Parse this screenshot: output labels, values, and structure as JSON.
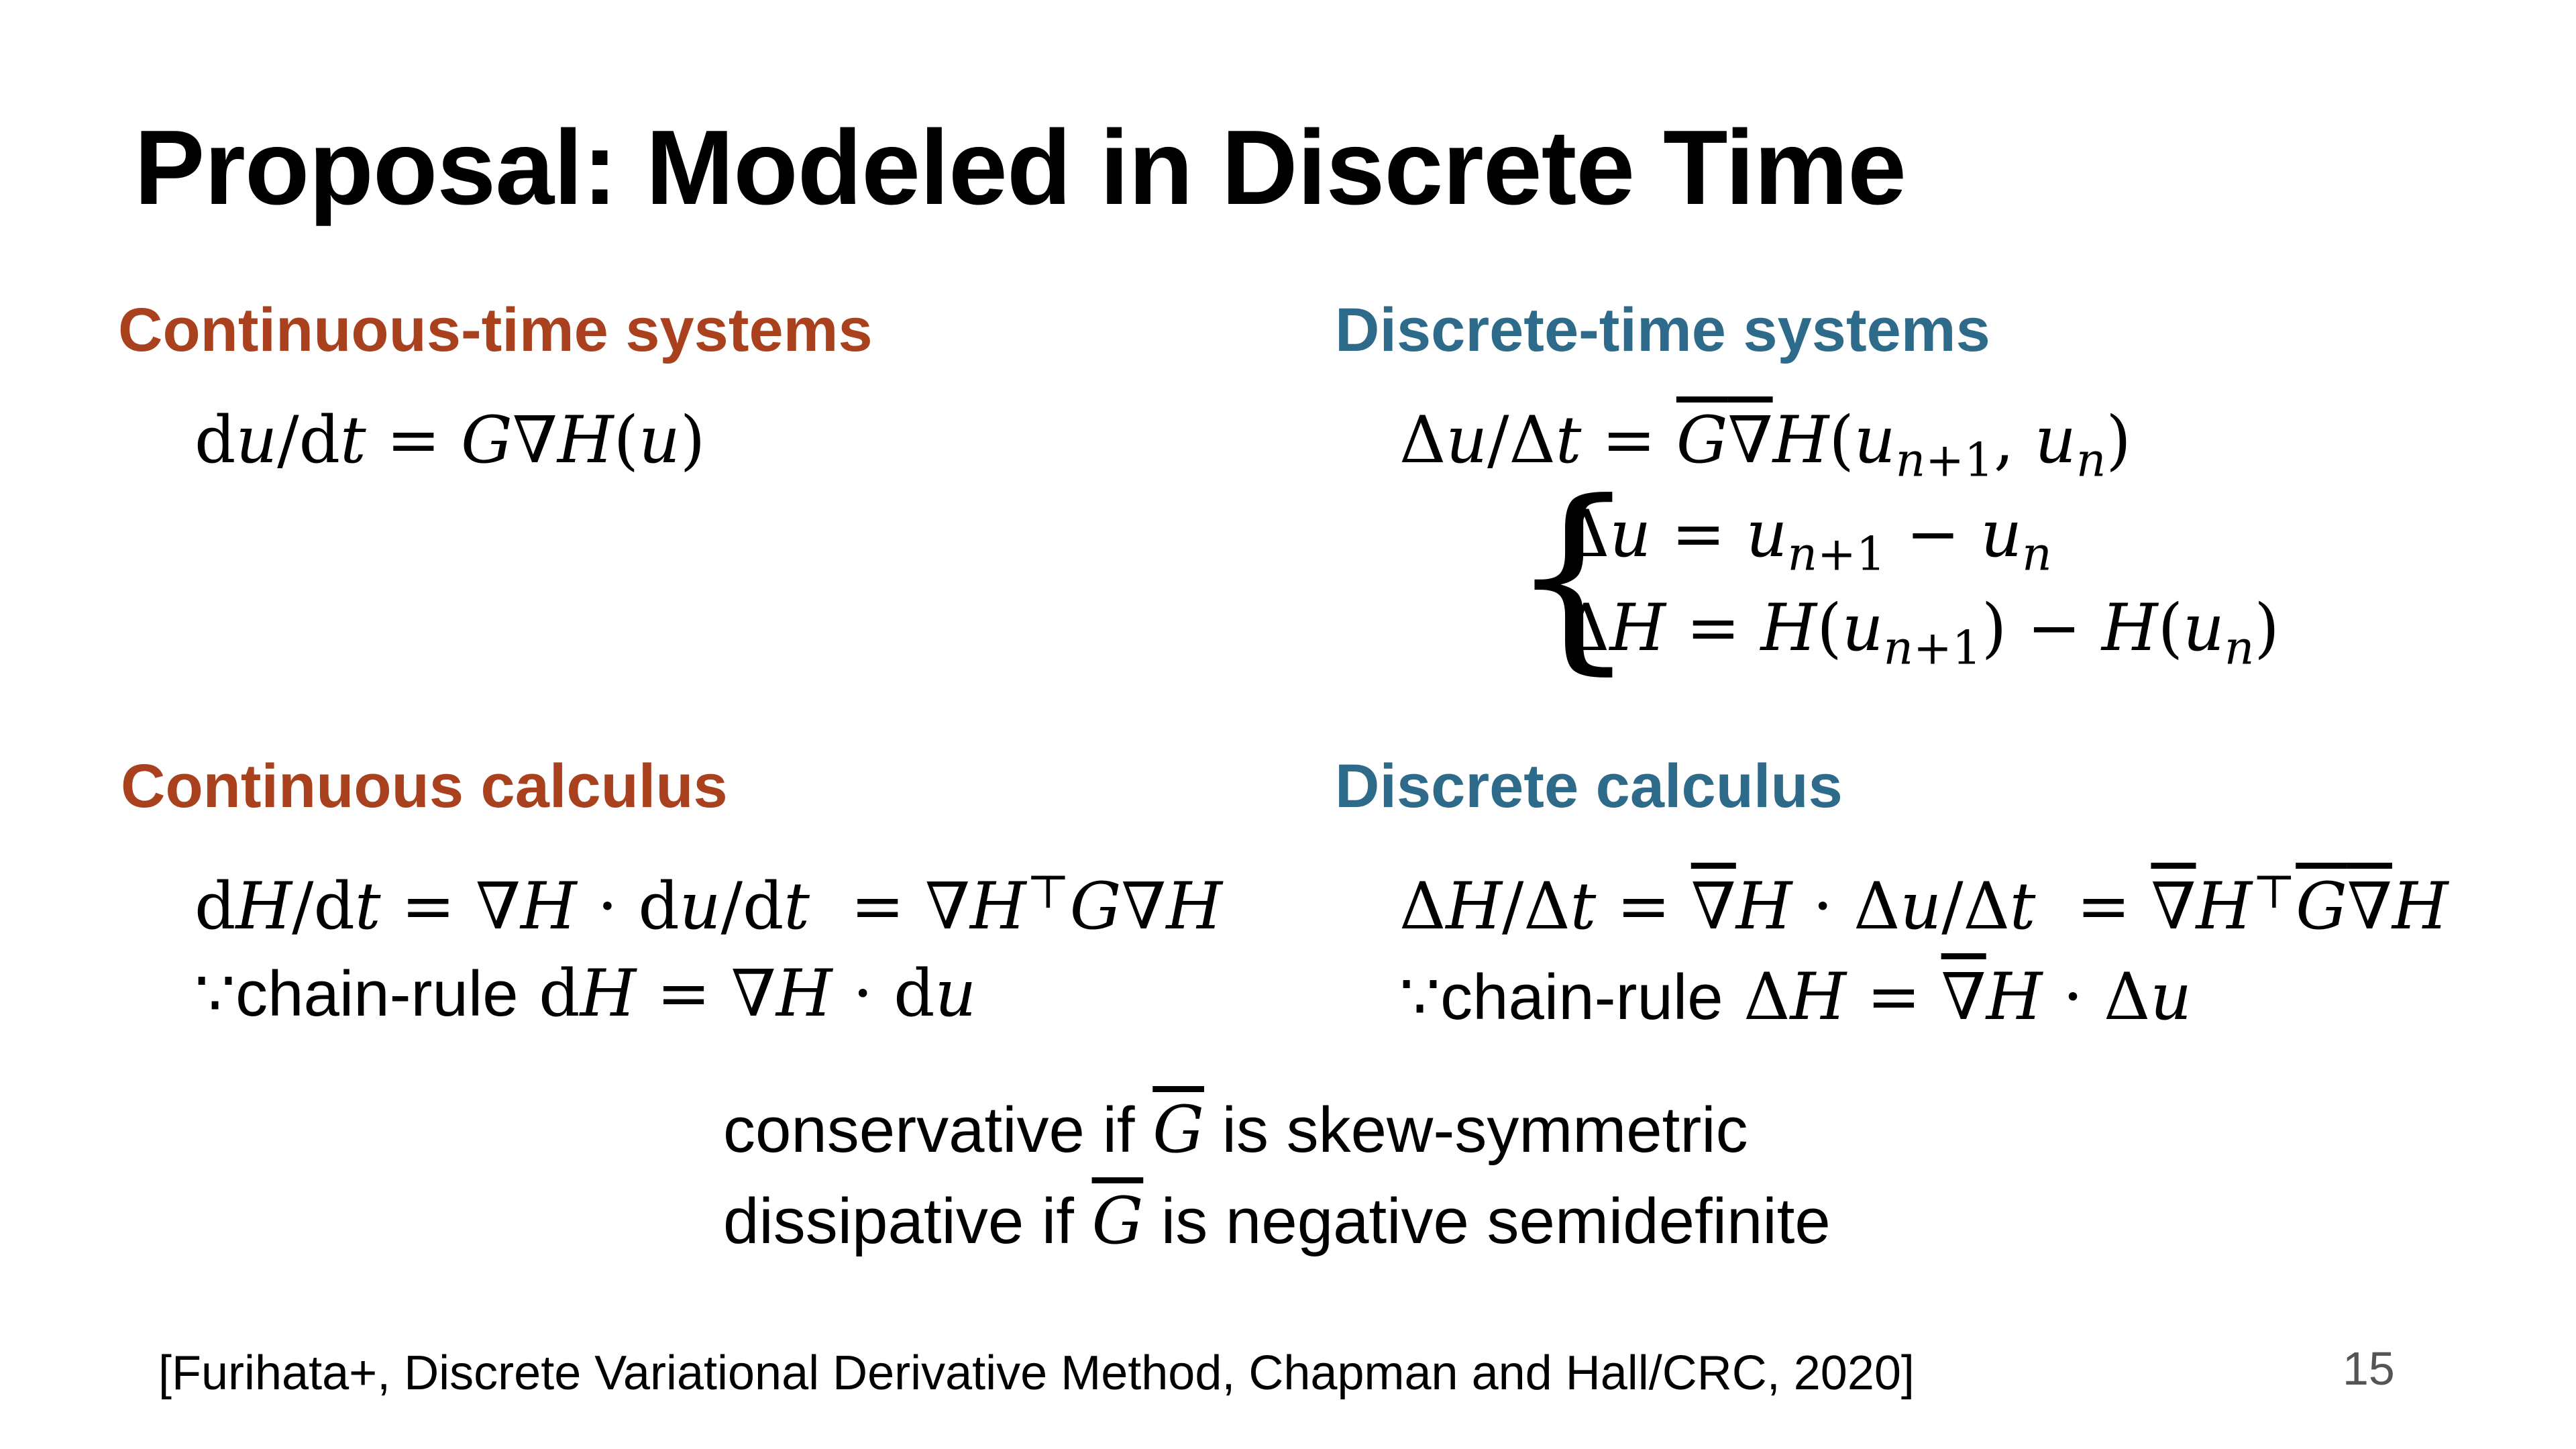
{
  "slide": {
    "title": "Proposal: Modeled in Discrete Time",
    "page_number": "15",
    "reference": "[Furihata+, Discrete Variational Derivative Method, Chapman and Hall/CRC, 2020]"
  },
  "continuous": {
    "systems_header": "Continuous-time systems",
    "calculus_header": "Continuous calculus"
  },
  "discrete": {
    "systems_header": "Discrete-time systems",
    "calculus_header": "Discrete calculus"
  },
  "bottom": {
    "conservative_prefix": "conservative if ",
    "conservative_suffix": " is skew-symmetric",
    "dissipative_prefix": "dissipative if ",
    "dissipative_suffix": " is negative semidefinite"
  }
}
